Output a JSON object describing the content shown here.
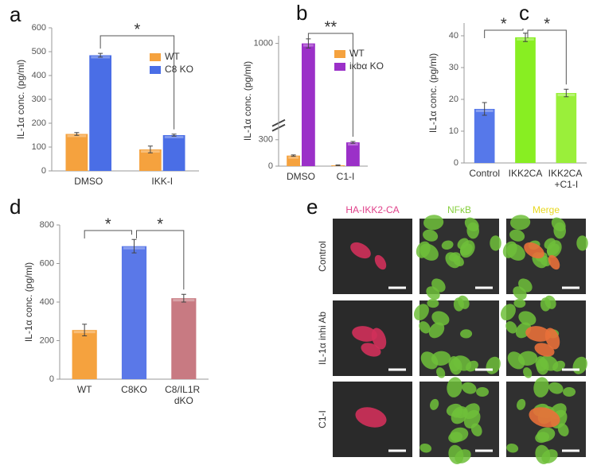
{
  "chart_data": [
    {
      "type": "bar",
      "panel_label": "a",
      "y_label": "IL-1α conc. (pg/ml)",
      "categories": [
        "DMSO",
        "IKK-I"
      ],
      "series": [
        {
          "name": "WT",
          "color": "#f5a23e",
          "values": [
            155,
            90
          ],
          "errors": [
            6,
            14
          ]
        },
        {
          "name": "C8 KO",
          "color": "#4a6ee6",
          "values": [
            485,
            150
          ],
          "errors": [
            8,
            4
          ]
        }
      ],
      "ylim": [
        0,
        600
      ],
      "yticks": [
        0,
        100,
        200,
        300,
        400,
        500,
        600
      ],
      "annotations": [
        "*"
      ]
    },
    {
      "type": "bar",
      "panel_label": "b",
      "y_label": "IL-1α conc. (pg/ml)",
      "categories": [
        "DMSO",
        "C1-I"
      ],
      "series": [
        {
          "name": "WT",
          "color": "#f5a23e",
          "values": [
            120,
            10
          ],
          "errors": [
            8,
            3
          ]
        },
        {
          "name": "iκbα KO",
          "color": "#9b30c8",
          "values": [
            1000,
            270
          ],
          "errors": [
            6,
            10
          ]
        }
      ],
      "ylim": [
        0,
        1010
      ],
      "axis_break": [
        400,
        900
      ],
      "yticks": [
        0,
        300,
        1000
      ],
      "annotations": [
        "**"
      ]
    },
    {
      "type": "bar",
      "panel_label": "c",
      "y_label": "IL-1α conc. (pg/ml)",
      "categories": [
        "Control",
        "IKK2CA",
        "IKK2CA +C1-I"
      ],
      "values": [
        17,
        39.5,
        22
      ],
      "errors": [
        2,
        1.3,
        1.2
      ],
      "colors": [
        "#5678ea",
        "#88ee22",
        "#9aef3a"
      ],
      "ylim": [
        0,
        44
      ],
      "yticks": [
        0,
        10,
        20,
        30,
        40
      ],
      "annotations": [
        "*",
        "*"
      ]
    },
    {
      "type": "bar",
      "panel_label": "d",
      "y_label": "IL-1α conc. (pg/ml)",
      "categories": [
        "WT",
        "C8KO",
        "C8/IL1R dKO"
      ],
      "values": [
        255,
        690,
        420
      ],
      "errors": [
        30,
        35,
        20
      ],
      "colors": [
        "#f5a23e",
        "#5a78e8",
        "#c87a82"
      ],
      "ylim": [
        0,
        800
      ],
      "yticks": [
        0,
        200,
        400,
        600,
        800
      ],
      "annotations": [
        "*",
        "*"
      ]
    }
  ],
  "panel_e": {
    "panel_label": "e",
    "columns": [
      "HA-IKK2-CA",
      "NFκB",
      "Merge"
    ],
    "rows": [
      "Control",
      "IL-1α inhi Ab",
      "C1-I"
    ]
  }
}
